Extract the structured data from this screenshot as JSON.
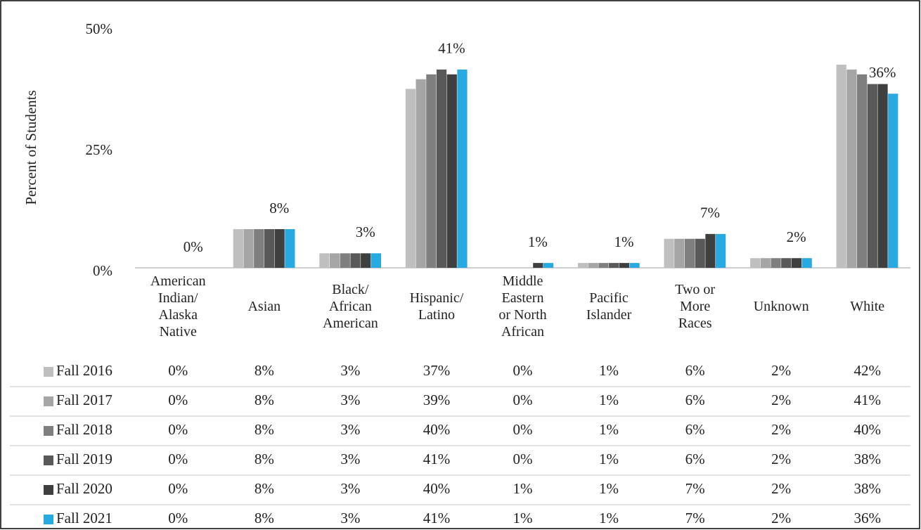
{
  "chart_data": {
    "type": "bar",
    "y_label": "Percent of Students",
    "categories": [
      "American Indian/ Alaska Native",
      "Asian",
      "Black/ African American",
      "Hispanic/ Latino",
      "Middle Eastern or North African",
      "Pacific Islander",
      "Two or More Races",
      "Unknown",
      "White"
    ],
    "series": [
      {
        "name": "Fall 2016",
        "color": "#bfbfbf",
        "values": [
          0,
          8,
          3,
          37,
          0,
          1,
          6,
          2,
          42
        ],
        "value_labels": [
          "0%",
          "8%",
          "3%",
          "37%",
          "0%",
          "1%",
          "6%",
          "2%",
          "42%"
        ]
      },
      {
        "name": "Fall 2017",
        "color": "#a5a5a5",
        "values": [
          0,
          8,
          3,
          39,
          0,
          1,
          6,
          2,
          41
        ],
        "value_labels": [
          "0%",
          "8%",
          "3%",
          "39%",
          "0%",
          "1%",
          "6%",
          "2%",
          "41%"
        ]
      },
      {
        "name": "Fall 2018",
        "color": "#7f7f7f",
        "values": [
          0,
          8,
          3,
          40,
          0,
          1,
          6,
          2,
          40
        ],
        "value_labels": [
          "0%",
          "8%",
          "3%",
          "40%",
          "0%",
          "1%",
          "6%",
          "2%",
          "40%"
        ]
      },
      {
        "name": "Fall 2019",
        "color": "#595959",
        "values": [
          0,
          8,
          3,
          41,
          0,
          1,
          6,
          2,
          38
        ],
        "value_labels": [
          "0%",
          "8%",
          "3%",
          "41%",
          "0%",
          "1%",
          "6%",
          "2%",
          "38%"
        ]
      },
      {
        "name": "Fall 2020",
        "color": "#3f3f3f",
        "values": [
          0,
          8,
          3,
          40,
          1,
          1,
          7,
          2,
          38
        ],
        "value_labels": [
          "0%",
          "8%",
          "3%",
          "40%",
          "1%",
          "1%",
          "7%",
          "2%",
          "38%"
        ]
      },
      {
        "name": "Fall 2021",
        "color": "#27aae1",
        "values": [
          0,
          8,
          3,
          41,
          1,
          1,
          7,
          2,
          36
        ],
        "value_labels": [
          "0%",
          "8%",
          "3%",
          "41%",
          "1%",
          "1%",
          "7%",
          "2%",
          "36%"
        ]
      }
    ],
    "labeled_series": 5,
    "ylim": [
      0,
      50
    ],
    "yticks": [
      {
        "value": 0,
        "label": "0%"
      },
      {
        "value": 25,
        "label": "25%"
      },
      {
        "value": 50,
        "label": "50%"
      }
    ],
    "grid": false
  }
}
